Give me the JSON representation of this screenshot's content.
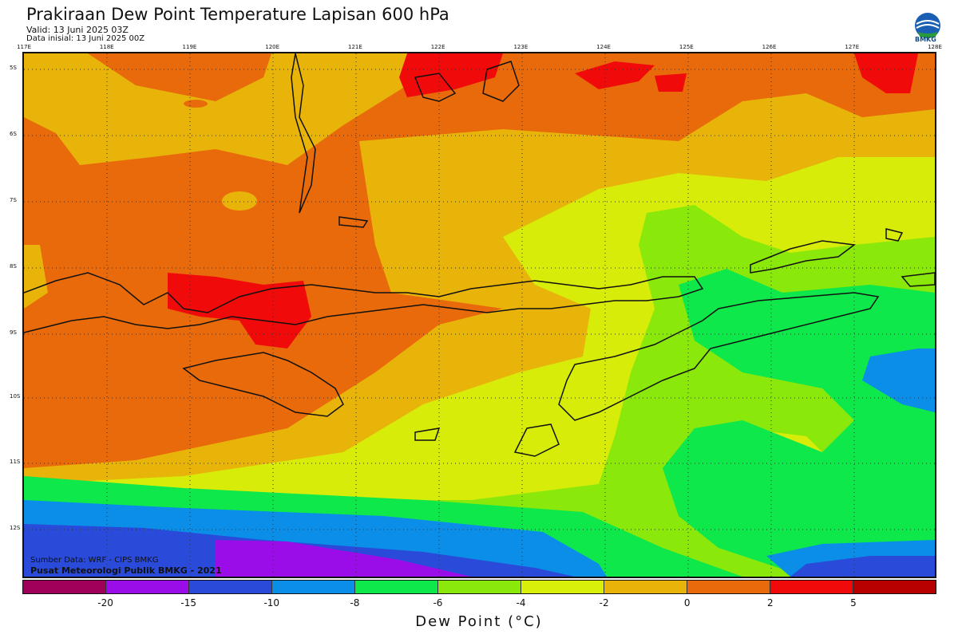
{
  "header": {
    "title": "Prakiraan Dew Point Temperature Lapisan 600 hPa",
    "valid": "Valid: 13 Juni 2025 03Z",
    "initial": "Data inisial: 13 Juni 2025 00Z",
    "logo_text": "BMKG"
  },
  "map": {
    "lon_labels": [
      "117E",
      "118E",
      "119E",
      "120E",
      "121E",
      "122E",
      "123E",
      "124E",
      "125E",
      "126E",
      "127E",
      "128E"
    ],
    "lat_labels": [
      "5S",
      "6S",
      "7S",
      "8S",
      "9S",
      "10S",
      "11S",
      "12S"
    ],
    "credit_source": "Sumber Data: WRF - CIPS BMKG",
    "credit_center": "Pusat Meteorologi Publik BMKG - 2021"
  },
  "colorbar": {
    "title": "Dew Point (°C)",
    "ticks": [
      "-20",
      "-15",
      "-10",
      "-8",
      "-6",
      "-4",
      "-2",
      "0",
      "2",
      "5"
    ],
    "colors": [
      "#a0005a",
      "#9a0de8",
      "#2a4bd9",
      "#0a8ee8",
      "#0ee84a",
      "#8ae80a",
      "#d8f00a",
      "#e8b40a",
      "#e86a0a",
      "#f00a0a",
      "#b80000"
    ]
  },
  "colors": {
    "orange": "#e86a0a",
    "amber": "#e8b40a",
    "yellow": "#d8ec0a",
    "lime": "#8ae80a",
    "green": "#0ee84a",
    "sky": "#0a8ee8",
    "blue": "#2a4bd9",
    "purple": "#9a0de8",
    "red": "#f00a0a"
  }
}
